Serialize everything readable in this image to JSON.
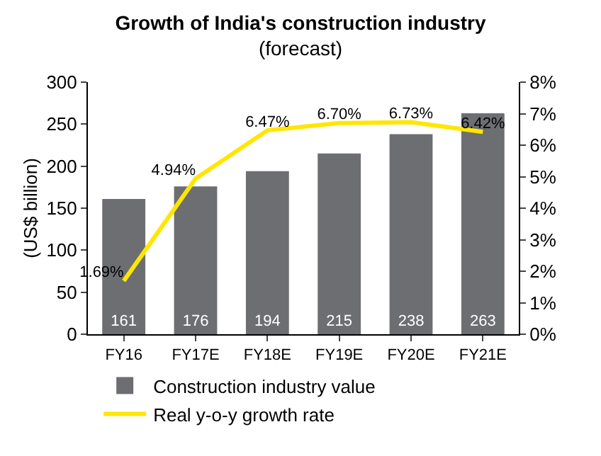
{
  "chart_data": {
    "type": "bar",
    "title": "Growth of India's construction industry",
    "subtitle": "(forecast)",
    "ylabel": "(US$ billion)",
    "categories": [
      "FY16",
      "FY17E",
      "FY18E",
      "FY19E",
      "FY20E",
      "FY21E"
    ],
    "series": [
      {
        "name": "Construction industry value",
        "color": "#6d6e71",
        "values": [
          161,
          176,
          194,
          215,
          238,
          263
        ],
        "value_labels": [
          "161",
          "176",
          "194",
          "215",
          "238",
          "263"
        ]
      },
      {
        "name": "Real y-o-y growth rate",
        "type": "line",
        "axis": "y2",
        "color": "#ffe600",
        "values": [
          1.69,
          4.94,
          6.47,
          6.7,
          6.73,
          6.42
        ],
        "value_labels": [
          "1.69%",
          "4.94%",
          "6.47%",
          "6.70%",
          "6.73%",
          "6.42%"
        ]
      }
    ],
    "ylim": [
      0,
      300
    ],
    "yticks": [
      0,
      50,
      100,
      150,
      200,
      250,
      300
    ],
    "y2lim": [
      0,
      8
    ],
    "y2ticks": [
      {
        "value": 0,
        "label": "0%"
      },
      {
        "value": 1,
        "label": "1%"
      },
      {
        "value": 2,
        "label": "2%"
      },
      {
        "value": 3,
        "label": "3%"
      },
      {
        "value": 4,
        "label": "4%"
      },
      {
        "value": 5,
        "label": "5%"
      },
      {
        "value": 6,
        "label": "6%"
      },
      {
        "value": 7,
        "label": "7%"
      },
      {
        "value": 8,
        "label": "8%"
      }
    ],
    "grid": false,
    "legend": "bottom",
    "marker": "none",
    "line_style": "solid"
  }
}
